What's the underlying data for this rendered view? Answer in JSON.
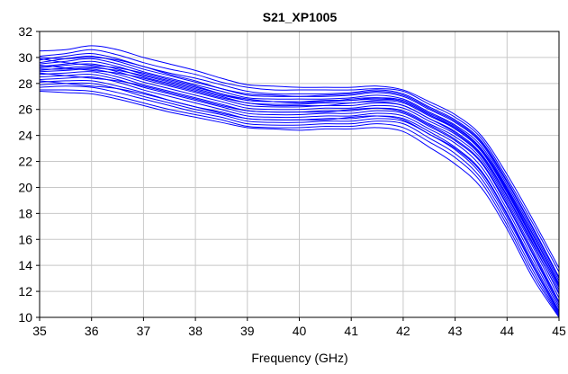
{
  "chart_data": {
    "type": "line",
    "title": "S21_XP1005",
    "xlabel": "Frequency (GHz)",
    "ylabel": "",
    "xlim": [
      35,
      45
    ],
    "ylim": [
      10,
      32
    ],
    "xticks": [
      35,
      36,
      37,
      38,
      39,
      40,
      41,
      42,
      43,
      44,
      45
    ],
    "yticks": [
      10,
      12,
      14,
      16,
      18,
      20,
      22,
      24,
      26,
      28,
      30,
      32
    ],
    "grid": true,
    "legend": "none",
    "line_color": "#0000ff",
    "x": [
      35,
      35.5,
      36,
      36.5,
      37,
      37.5,
      38,
      38.5,
      39,
      39.5,
      40,
      40.5,
      41,
      41.5,
      42,
      42.5,
      43,
      43.5,
      44,
      44.5,
      45
    ],
    "series": [
      {
        "values": [
          30.5,
          30.6,
          30.9,
          30.6,
          30.0,
          29.5,
          29.0,
          28.4,
          27.9,
          27.8,
          27.7,
          27.7,
          27.7,
          27.8,
          27.5,
          26.6,
          25.6,
          24.0,
          21.0,
          17.5,
          13.8
        ]
      },
      {
        "values": [
          30.1,
          30.3,
          30.6,
          30.2,
          29.6,
          29.1,
          28.7,
          28.1,
          27.7,
          27.5,
          27.5,
          27.5,
          27.5,
          27.6,
          27.4,
          26.4,
          25.4,
          23.8,
          20.7,
          17.2,
          13.5
        ]
      },
      {
        "values": [
          29.8,
          30.1,
          30.3,
          29.9,
          29.3,
          28.8,
          28.4,
          27.9,
          27.4,
          27.2,
          27.2,
          27.2,
          27.3,
          27.5,
          27.2,
          26.2,
          25.2,
          23.6,
          20.5,
          16.9,
          13.1
        ]
      },
      {
        "values": [
          29.6,
          29.9,
          30.1,
          29.7,
          29.1,
          28.6,
          28.1,
          27.6,
          27.1,
          27.0,
          27.0,
          27.0,
          27.1,
          27.3,
          27.0,
          26.0,
          25.0,
          23.4,
          20.2,
          16.6,
          12.8
        ]
      },
      {
        "values": [
          29.5,
          29.7,
          29.9,
          29.5,
          28.9,
          28.4,
          27.9,
          27.4,
          26.9,
          26.8,
          26.8,
          26.8,
          26.9,
          27.1,
          26.8,
          25.8,
          24.8,
          23.2,
          20.0,
          16.4,
          12.6
        ]
      },
      {
        "values": [
          29.3,
          29.5,
          29.7,
          29.3,
          28.7,
          28.2,
          27.7,
          27.2,
          26.7,
          26.6,
          26.6,
          26.7,
          26.7,
          26.9,
          26.7,
          25.7,
          24.7,
          23.0,
          19.8,
          16.1,
          12.3
        ]
      },
      {
        "values": [
          29.2,
          29.4,
          29.5,
          29.1,
          28.5,
          28.0,
          27.5,
          27.0,
          26.5,
          26.4,
          26.4,
          26.5,
          26.5,
          26.7,
          26.5,
          25.5,
          24.5,
          22.8,
          19.6,
          15.9,
          12.1
        ]
      },
      {
        "values": [
          29.0,
          29.2,
          29.3,
          28.9,
          28.3,
          27.8,
          27.3,
          26.8,
          26.3,
          26.2,
          26.2,
          26.3,
          26.3,
          26.5,
          26.3,
          25.3,
          24.3,
          22.6,
          19.4,
          15.7,
          11.8
        ]
      },
      {
        "values": [
          28.9,
          29.0,
          29.1,
          28.7,
          28.1,
          27.6,
          27.1,
          26.6,
          26.1,
          26.0,
          26.0,
          26.1,
          26.1,
          26.3,
          26.1,
          25.1,
          24.1,
          22.4,
          19.1,
          15.4,
          11.5
        ]
      },
      {
        "values": [
          28.7,
          28.8,
          28.9,
          28.5,
          27.9,
          27.4,
          26.9,
          26.4,
          25.9,
          25.8,
          25.8,
          25.9,
          25.9,
          26.1,
          25.9,
          24.9,
          23.9,
          22.2,
          18.9,
          15.1,
          11.2
        ]
      },
      {
        "values": [
          28.5,
          28.6,
          28.7,
          28.3,
          27.7,
          27.2,
          26.7,
          26.2,
          25.7,
          25.6,
          25.6,
          25.7,
          25.7,
          25.9,
          25.7,
          24.7,
          23.6,
          21.9,
          18.6,
          14.8,
          10.9
        ]
      },
      {
        "values": [
          28.3,
          28.4,
          28.5,
          28.1,
          27.5,
          27.0,
          26.5,
          26.0,
          25.5,
          25.4,
          25.4,
          25.5,
          25.5,
          25.7,
          25.5,
          24.5,
          23.4,
          21.6,
          18.3,
          14.5,
          10.7
        ]
      },
      {
        "values": [
          28.1,
          28.2,
          28.2,
          27.8,
          27.3,
          26.7,
          26.2,
          25.8,
          25.3,
          25.2,
          25.2,
          25.3,
          25.3,
          25.5,
          25.3,
          24.3,
          23.1,
          21.3,
          18.0,
          14.2,
          10.5
        ]
      },
      {
        "values": [
          27.9,
          28.0,
          28.0,
          27.6,
          27.0,
          26.5,
          26.0,
          25.6,
          25.1,
          25.0,
          25.0,
          25.1,
          25.1,
          25.3,
          25.1,
          24.1,
          22.9,
          21.0,
          17.7,
          13.9,
          10.3
        ]
      },
      {
        "values": [
          27.7,
          27.8,
          27.7,
          27.3,
          26.8,
          26.3,
          25.8,
          25.4,
          24.9,
          24.8,
          24.8,
          24.9,
          24.9,
          25.1,
          24.9,
          23.8,
          22.6,
          20.7,
          17.4,
          13.6,
          10.2
        ]
      },
      {
        "values": [
          27.5,
          27.5,
          27.4,
          27.0,
          26.5,
          26.0,
          25.6,
          25.2,
          24.7,
          24.6,
          24.6,
          24.7,
          24.7,
          24.9,
          24.6,
          23.5,
          22.3,
          20.4,
          17.1,
          13.3,
          10.1
        ]
      },
      {
        "values": [
          27.4,
          27.3,
          27.2,
          26.8,
          26.3,
          25.8,
          25.4,
          25.0,
          24.6,
          24.5,
          24.4,
          24.5,
          24.5,
          24.6,
          24.3,
          23.1,
          21.8,
          20.0,
          16.8,
          13.0,
          10.0
        ]
      },
      {
        "values": [
          29.9,
          29.6,
          29.4,
          29.2,
          28.8,
          28.3,
          27.8,
          27.2,
          26.8,
          26.6,
          26.6,
          26.6,
          26.8,
          26.9,
          26.6,
          25.6,
          24.5,
          22.9,
          19.7,
          16.0,
          12.4
        ]
      },
      {
        "values": [
          29.4,
          29.2,
          29.0,
          28.8,
          28.4,
          27.9,
          27.4,
          26.9,
          26.5,
          26.3,
          26.3,
          26.3,
          26.5,
          26.6,
          26.3,
          25.3,
          24.2,
          22.5,
          19.3,
          15.6,
          11.9
        ]
      },
      {
        "values": [
          28.8,
          28.6,
          28.4,
          28.2,
          27.8,
          27.3,
          26.8,
          26.3,
          25.9,
          25.8,
          25.8,
          25.8,
          26.0,
          26.1,
          25.8,
          24.8,
          23.7,
          22.0,
          18.7,
          14.9,
          11.1
        ]
      },
      {
        "values": [
          28.2,
          28.0,
          27.8,
          27.6,
          27.2,
          26.7,
          26.2,
          25.7,
          25.3,
          25.2,
          25.2,
          25.2,
          25.4,
          25.5,
          25.2,
          24.1,
          23.0,
          21.2,
          17.9,
          14.0,
          10.4
        ]
      },
      {
        "values": [
          30.0,
          29.9,
          30.0,
          29.8,
          29.3,
          28.7,
          28.2,
          27.6,
          27.2,
          27.1,
          27.0,
          27.1,
          27.2,
          27.4,
          27.1,
          26.1,
          25.1,
          23.5,
          20.4,
          16.8,
          13.0
        ]
      },
      {
        "values": [
          29.1,
          29.1,
          29.2,
          29.0,
          28.6,
          28.1,
          27.6,
          27.1,
          26.7,
          26.6,
          26.5,
          26.6,
          26.7,
          26.8,
          26.6,
          25.6,
          24.6,
          23.0,
          19.9,
          16.3,
          12.5
        ]
      }
    ]
  }
}
